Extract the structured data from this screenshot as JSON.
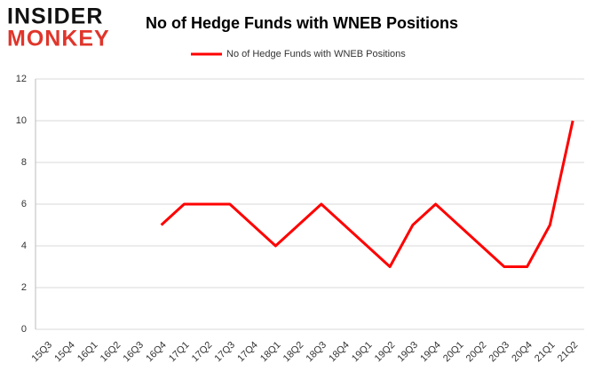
{
  "logo": {
    "line1": "INSIDER",
    "line2": "MONKEY"
  },
  "chart_data": {
    "type": "line",
    "title": "No of Hedge Funds with WNEB Positions",
    "categories": [
      "15Q3",
      "15Q4",
      "16Q1",
      "16Q2",
      "16Q3",
      "16Q4",
      "17Q1",
      "17Q2",
      "17Q3",
      "17Q4",
      "18Q1",
      "18Q2",
      "18Q3",
      "18Q4",
      "19Q1",
      "19Q2",
      "19Q3",
      "19Q4",
      "20Q1",
      "20Q2",
      "20Q3",
      "20Q4",
      "21Q1",
      "21Q2"
    ],
    "series": [
      {
        "name": "No of Hedge Funds with WNEB Positions",
        "color": "#ff0000",
        "values": [
          null,
          null,
          null,
          null,
          null,
          5,
          6,
          6,
          6,
          5,
          4,
          5,
          6,
          5,
          4,
          3,
          5,
          6,
          5,
          4,
          3,
          3,
          5,
          10
        ]
      }
    ],
    "ylim": [
      0,
      12
    ],
    "yticks": [
      0,
      2,
      4,
      6,
      8,
      10,
      12
    ],
    "grid": true,
    "legend": "top"
  }
}
